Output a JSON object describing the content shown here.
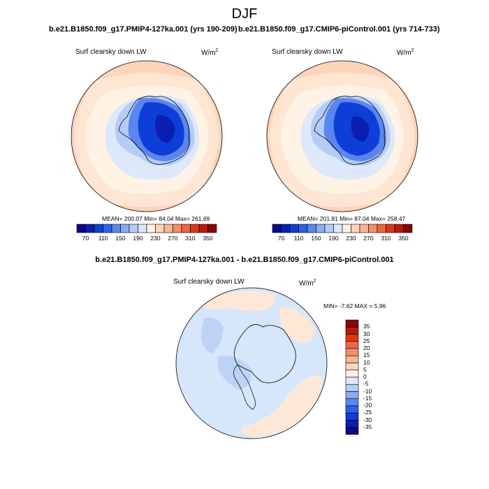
{
  "figure_title": "DJF",
  "panels": [
    {
      "run_title": "b.e21.B1850.f09_g17.PMIP4-127ka.001 (yrs 190-209)",
      "variable": "Surf clearsky down LW",
      "units": "W/m",
      "units_exp": "2",
      "stats": "MEAN= 200.07  Min=  84.04  Max= 261.69"
    },
    {
      "run_title": "b.e21.B1850.f09_g17.CMIP6-piControl.001 (yrs 714-733)",
      "variable": "Surf clearsky down LW",
      "units": "W/m",
      "units_exp": "2",
      "stats": "MEAN= 201.81  Min=  87.04  Max= 258.47"
    },
    {
      "run_title": "b.e21.B1850.f09_g17.PMIP4-127ka.001 - b.e21.B1850.f09_g17.CMIP6-piControl.001",
      "variable": "Surf clearsky down LW",
      "units": "W/m",
      "units_exp": "2",
      "stats": "MIN=  -7.62 MAX =   5.96"
    }
  ],
  "colorbar_abs": {
    "tick_labels": [
      "70",
      "110",
      "150",
      "190",
      "230",
      "270",
      "310",
      "350"
    ],
    "colors": [
      "#0a0a8a",
      "#0a1fb0",
      "#0d3fd8",
      "#2a62ea",
      "#5a86ee",
      "#8aaaf3",
      "#b5cdf6",
      "#dde8fb",
      "#fff1e0",
      "#fdd5bc",
      "#fbb594",
      "#f58e6a",
      "#ef6440",
      "#dc3818",
      "#b91a0a",
      "#8a0606"
    ]
  },
  "colorbar_diff": {
    "tick_labels": [
      "35",
      "30",
      "25",
      "20",
      "15",
      "10",
      "5",
      "0",
      "-5",
      "-10",
      "-15",
      "-20",
      "-25",
      "-30",
      "-35"
    ],
    "colors": [
      "#8a0606",
      "#b91a0a",
      "#dc3818",
      "#ef6440",
      "#f58e6a",
      "#fbb594",
      "#fdd5bc",
      "#fff1e0",
      "#dde8fb",
      "#b5cdf6",
      "#8aaaf3",
      "#5a86ee",
      "#2a62ea",
      "#0d3fd8",
      "#0a1fb0",
      "#0a0a8a"
    ]
  },
  "map_colors": {
    "ring_outer": "#fdd3ba",
    "ring_mid": "#ffe6d2",
    "ocean_pale": "#fff3e6",
    "sea_ice": "#dde8fb",
    "ice_1": "#b5cdf6",
    "ice_2": "#8aaaf3",
    "ice_3": "#5a86ee",
    "ice_4": "#2a62ea",
    "ice_5": "#0d3fd8",
    "ice_6": "#0a1fb0",
    "diff_bg": "#d6e6fb",
    "diff_pos": "#fde7d6",
    "diff_neg": "#bcd3f6"
  }
}
